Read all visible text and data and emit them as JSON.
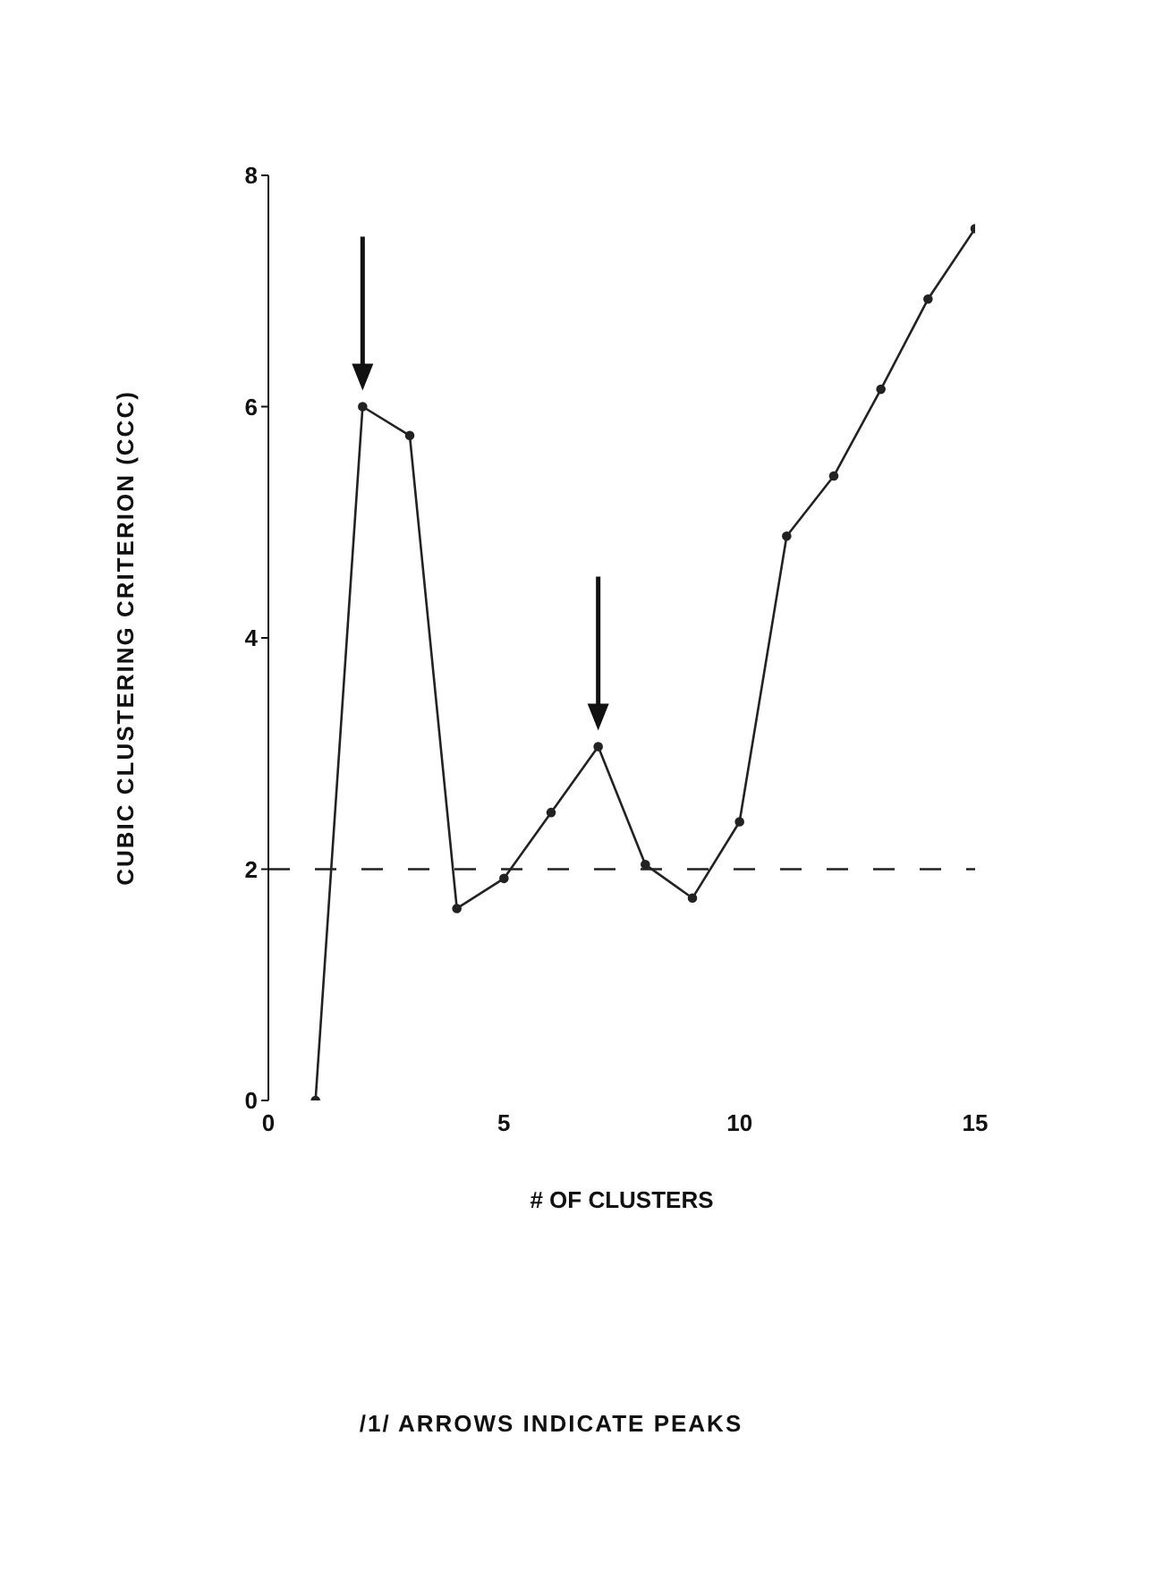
{
  "chart_data": {
    "type": "line",
    "xlabel": "# OF CLUSTERS",
    "ylabel": "CUBIC CLUSTERING CRITERION (CCC)",
    "x": [
      1,
      2,
      3,
      4,
      5,
      6,
      7,
      8,
      9,
      10,
      11,
      12,
      13,
      14,
      15
    ],
    "series": [
      {
        "color": "#222222",
        "values": [
          0,
          6.0,
          5.75,
          1.66,
          1.92,
          2.49,
          3.06,
          2.04,
          1.75,
          2.41,
          4.88,
          5.4,
          6.15,
          6.93,
          7.54
        ]
      }
    ],
    "xlim": [
      0,
      15
    ],
    "xticks": [
      0,
      5,
      10,
      15
    ],
    "ylim": [
      0,
      8
    ],
    "yticks": [
      0,
      2,
      4,
      6,
      8
    ],
    "ref_lines": [
      {
        "axis": "y",
        "value": 2,
        "line_style": "dashed",
        "color": "#222222"
      }
    ],
    "marker": "circle",
    "line_style": "solid",
    "grid": false,
    "legend": false,
    "annotations": [
      "/1/ ARROWS INDICATE PEAKS"
    ]
  }
}
